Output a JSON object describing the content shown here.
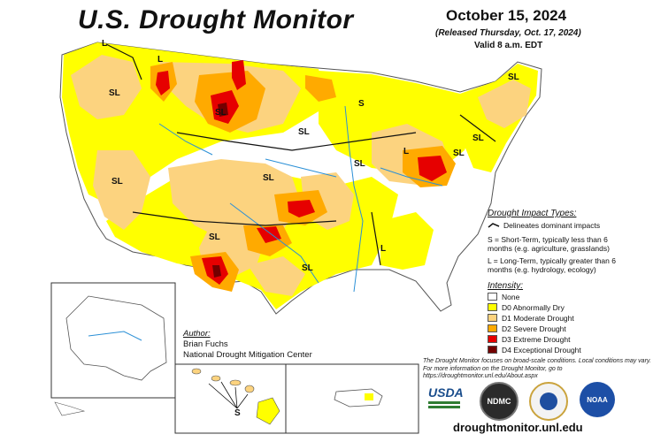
{
  "header": {
    "title": "U.S. Drought Monitor",
    "date": "October 15, 2024",
    "released": "(Released Thursday, Oct. 17, 2024)",
    "valid": "Valid 8 a.m. EDT"
  },
  "impact": {
    "title": "Drought Impact Types:",
    "delineates": "Delineates dominant impacts",
    "short_term": "S = Short-Term, typically less than 6 months (e.g. agriculture, grasslands)",
    "long_term": "L = Long-Term, typically greater than 6 months (e.g. hydrology, ecology)"
  },
  "intensity": {
    "title": "Intensity:",
    "levels": [
      {
        "label": "None",
        "color": "#ffffff"
      },
      {
        "label": "D0 Abnormally Dry",
        "color": "#ffff00"
      },
      {
        "label": "D1 Moderate Drought",
        "color": "#fcd37f"
      },
      {
        "label": "D2 Severe Drought",
        "color": "#ffaa00"
      },
      {
        "label": "D3 Extreme Drought",
        "color": "#e60000"
      },
      {
        "label": "D4 Exceptional Drought",
        "color": "#730000"
      }
    ]
  },
  "author": {
    "heading": "Author:",
    "name": "Brian Fuchs",
    "org": "National Drought Mitigation Center"
  },
  "note": "The Drought Monitor focuses on broad-scale conditions. Local conditions may vary. For more information on the Drought Monitor, go to https://droughtmonitor.unl.edu/About.aspx",
  "logos": {
    "usda": "USDA",
    "ndmc": "NDMC",
    "noaa": "NOAA"
  },
  "footer": "droughtmonitor.unl.edu",
  "map_labels": {
    "l": "L",
    "sl": "SL",
    "s": "S"
  },
  "colors": {
    "water": "#2a8fd6",
    "border": "#555555"
  }
}
